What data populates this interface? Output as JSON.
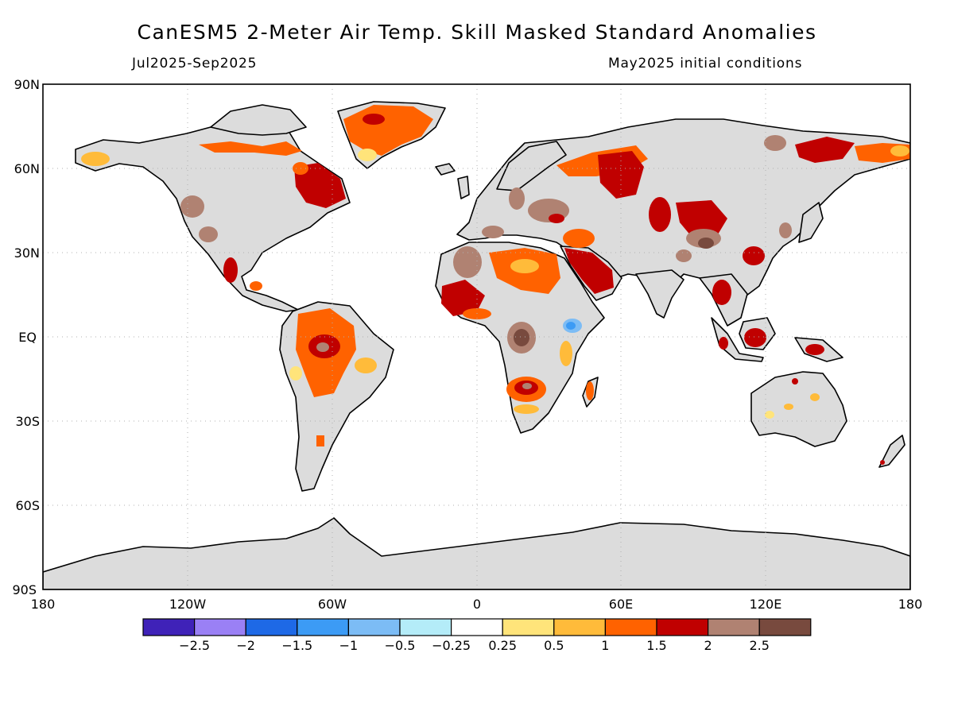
{
  "title": "CanESM5 2-Meter Air Temp. Skill Masked Standard Anomalies",
  "subtitle_left": "Jul2025-Sep2025",
  "subtitle_right": "May2025 initial conditions",
  "map": {
    "projection": "equirectangular",
    "grid": true,
    "lat_labels": [
      "90N",
      "60N",
      "30N",
      "EQ",
      "30S",
      "60S",
      "90S"
    ],
    "lon_labels": [
      "180",
      "120W",
      "60W",
      "0",
      "60E",
      "120E",
      "180"
    ],
    "land_color_default": "#dcdcdc",
    "anomaly_regions": [
      {
        "name": "Greenland",
        "value": 1.5
      },
      {
        "name": "Eastern Canada",
        "value": 2
      },
      {
        "name": "Arctic Canada",
        "value": 1.5
      },
      {
        "name": "Alaska",
        "value": 1
      },
      {
        "name": "Western US",
        "value": 2.5
      },
      {
        "name": "Mexico",
        "value": 2
      },
      {
        "name": "Amazon",
        "value": 2
      },
      {
        "name": "Brazil Northeast",
        "value": 1
      },
      {
        "name": "North Africa",
        "value": 1.5
      },
      {
        "name": "Arabian Peninsula",
        "value": 2
      },
      {
        "name": "Central Africa",
        "value": 2.5
      },
      {
        "name": "East Africa",
        "value": -1.5
      },
      {
        "name": "Southern Africa",
        "value": 2
      },
      {
        "name": "Siberia",
        "value": 1.5
      },
      {
        "name": "Central Asia",
        "value": 2
      },
      {
        "name": "Mongolia / China",
        "value": 2.5
      },
      {
        "name": "Southeast Asia",
        "value": 2
      },
      {
        "name": "Indonesia",
        "value": 2
      },
      {
        "name": "Australia",
        "value": 0.5
      }
    ]
  },
  "colorbar": {
    "colors": [
      "#3f22b8",
      "#9a80f5",
      "#1e69e6",
      "#3c9bf5",
      "#7cbcf5",
      "#b4ecf8",
      "#ffffff",
      "#ffe47a",
      "#ffbb3a",
      "#ff6200",
      "#c00000",
      "#b08272",
      "#784a3e"
    ],
    "labels": [
      "-2.5",
      "-2",
      "-1.5",
      "-1",
      "-0.5",
      "-0.25",
      "0.25",
      "0.5",
      "1",
      "1.5",
      "2",
      "2.5"
    ]
  }
}
